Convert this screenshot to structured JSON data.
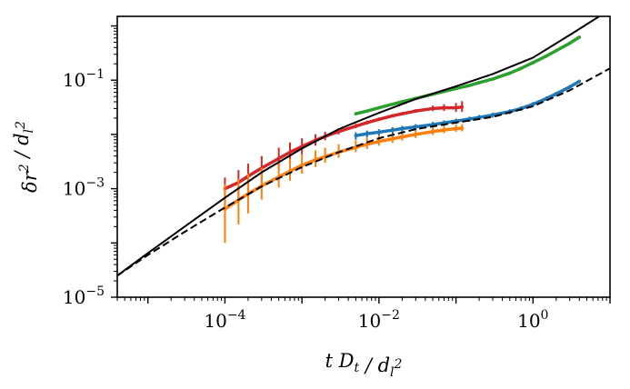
{
  "chart_data": {
    "type": "line",
    "title": "",
    "xlabel": "t D_t / d_l^2",
    "ylabel": "δr^2 / d_l^2",
    "xscale": "log",
    "yscale": "log",
    "xlim": [
      4e-06,
      10
    ],
    "ylim": [
      1e-05,
      1.5
    ],
    "grid": false,
    "x_ticks": [
      {
        "value": 0.0001,
        "base": "10",
        "exp": "−4"
      },
      {
        "value": 0.01,
        "base": "10",
        "exp": "−2"
      },
      {
        "value": 1,
        "base": "10",
        "exp": "0"
      }
    ],
    "y_ticks": [
      {
        "value": 1e-05,
        "base": "10",
        "exp": "−5"
      },
      {
        "value": 0.001,
        "base": "10",
        "exp": "−3"
      },
      {
        "value": 0.1,
        "base": "10",
        "exp": "−1"
      }
    ],
    "series": [
      {
        "style": "solid",
        "color": "#000000",
        "x": [
          4e-06,
          1e-05,
          3e-05,
          0.0001,
          0.0003,
          0.001,
          0.003,
          0.01,
          0.03,
          0.1,
          0.3,
          1,
          3,
          10
        ],
        "y": [
          2.5e-05,
          6.5e-05,
          0.0002,
          0.00068,
          0.002,
          0.0055,
          0.0125,
          0.025,
          0.045,
          0.077,
          0.13,
          0.26,
          0.68,
          2.0
        ]
      },
      {
        "style": "dashed",
        "color": "#000000",
        "x": [
          4e-06,
          1e-05,
          3e-05,
          0.0001,
          0.0003,
          0.001,
          0.003,
          0.01,
          0.03,
          0.1,
          0.3,
          1,
          3,
          10
        ],
        "y": [
          2.5e-05,
          6e-05,
          0.00016,
          0.00045,
          0.0011,
          0.0025,
          0.0047,
          0.0085,
          0.0125,
          0.0165,
          0.021,
          0.033,
          0.065,
          0.165
        ]
      },
      {
        "style": "errorbar",
        "color": "#d62728",
        "x": [
          0.0001,
          0.00015,
          0.0002,
          0.0003,
          0.0005,
          0.0007,
          0.001,
          0.0015,
          0.002,
          0.003,
          0.005,
          0.007,
          0.01,
          0.015,
          0.02,
          0.03,
          0.05,
          0.07,
          0.1,
          0.12
        ],
        "y": [
          0.001,
          0.0013,
          0.0017,
          0.0024,
          0.0036,
          0.0047,
          0.006,
          0.0078,
          0.0092,
          0.0113,
          0.0142,
          0.0165,
          0.019,
          0.022,
          0.024,
          0.027,
          0.03,
          0.031,
          0.031,
          0.032
        ],
        "yerr_lo": [
          0.0006,
          0.0007,
          0.0009,
          0.0011,
          0.0014,
          0.0016,
          0.0017,
          0.0016,
          0.0014,
          0.0013,
          0.0012,
          0.0012,
          0.0012,
          0.0013,
          0.0014,
          0.0016,
          0.003,
          0.004,
          0.005,
          0.006
        ],
        "yerr_hi": [
          0.0006,
          0.0009,
          0.0012,
          0.0016,
          0.0021,
          0.0024,
          0.0025,
          0.0023,
          0.002,
          0.0017,
          0.0015,
          0.0015,
          0.0015,
          0.0017,
          0.0019,
          0.0022,
          0.004,
          0.005,
          0.007,
          0.009
        ]
      },
      {
        "style": "errorbar",
        "color": "#ff7f0e",
        "x": [
          0.0001,
          0.00015,
          0.0002,
          0.0003,
          0.0005,
          0.0007,
          0.001,
          0.0015,
          0.002,
          0.003,
          0.005,
          0.007,
          0.01,
          0.015,
          0.02,
          0.03,
          0.05,
          0.07,
          0.1,
          0.12
        ],
        "y": [
          0.00042,
          0.00062,
          0.0008,
          0.00113,
          0.00165,
          0.0021,
          0.0027,
          0.0034,
          0.0039,
          0.0047,
          0.0058,
          0.0066,
          0.0074,
          0.0083,
          0.009,
          0.01,
          0.0113,
          0.0121,
          0.0128,
          0.013
        ],
        "yerr_lo": [
          0.00032,
          0.0004,
          0.00045,
          0.0005,
          0.0006,
          0.0007,
          0.0008,
          0.0009,
          0.0009,
          0.001,
          0.0011,
          0.0012,
          0.0012,
          0.0013,
          0.0013,
          0.0014,
          0.0015,
          0.0016,
          0.0016,
          0.0016
        ],
        "yerr_hi": [
          0.0008,
          0.0009,
          0.0011,
          0.0013,
          0.0014,
          0.0015,
          0.0016,
          0.0017,
          0.0018,
          0.0019,
          0.002,
          0.0021,
          0.0021,
          0.0022,
          0.0022,
          0.0023,
          0.0024,
          0.0024,
          0.0024,
          0.0024
        ]
      },
      {
        "style": "errorbar",
        "color": "#1f77b4",
        "x": [
          0.005,
          0.007,
          0.01,
          0.015,
          0.02,
          0.03,
          0.05,
          0.07,
          0.1,
          0.15,
          0.2,
          0.3,
          0.5,
          0.7,
          1,
          1.5,
          2,
          3,
          4
        ],
        "y": [
          0.0095,
          0.0103,
          0.011,
          0.012,
          0.0128,
          0.0138,
          0.0152,
          0.0163,
          0.0176,
          0.0192,
          0.0206,
          0.0228,
          0.0264,
          0.03,
          0.036,
          0.046,
          0.056,
          0.075,
          0.095
        ],
        "yerr_lo": [
          0.0015,
          0.0015,
          0.0015,
          0.0016,
          0.0016,
          0.0017,
          0.0018,
          0.0019,
          0.002,
          0.0021,
          0.0022,
          0.0024,
          0.0027,
          0.003,
          0.0035,
          0.0042,
          0.005,
          0.006,
          0.007
        ],
        "yerr_hi": [
          0.0015,
          0.0015,
          0.0015,
          0.0016,
          0.0016,
          0.0017,
          0.0018,
          0.0019,
          0.002,
          0.0021,
          0.0022,
          0.0024,
          0.0027,
          0.003,
          0.0035,
          0.0042,
          0.005,
          0.006,
          0.007
        ]
      },
      {
        "style": "errorbar",
        "color": "#2ca02c",
        "x": [
          0.005,
          0.007,
          0.01,
          0.015,
          0.02,
          0.03,
          0.05,
          0.07,
          0.1,
          0.15,
          0.2,
          0.3,
          0.5,
          0.7,
          1,
          1.5,
          2,
          3,
          4
        ],
        "y": [
          0.024,
          0.027,
          0.031,
          0.036,
          0.04,
          0.046,
          0.055,
          0.062,
          0.07,
          0.08,
          0.09,
          0.105,
          0.135,
          0.165,
          0.21,
          0.28,
          0.35,
          0.48,
          0.62
        ],
        "yerr_lo": [
          0.0015,
          0.0016,
          0.0018,
          0.002,
          0.0022,
          0.0025,
          0.003,
          0.0034,
          0.0038,
          0.0044,
          0.005,
          0.006,
          0.0075,
          0.009,
          0.011,
          0.015,
          0.018,
          0.025,
          0.032
        ],
        "yerr_hi": [
          0.0015,
          0.0016,
          0.0018,
          0.002,
          0.0022,
          0.0025,
          0.003,
          0.0034,
          0.0038,
          0.0044,
          0.005,
          0.006,
          0.0075,
          0.009,
          0.011,
          0.015,
          0.018,
          0.025,
          0.032
        ]
      }
    ]
  }
}
